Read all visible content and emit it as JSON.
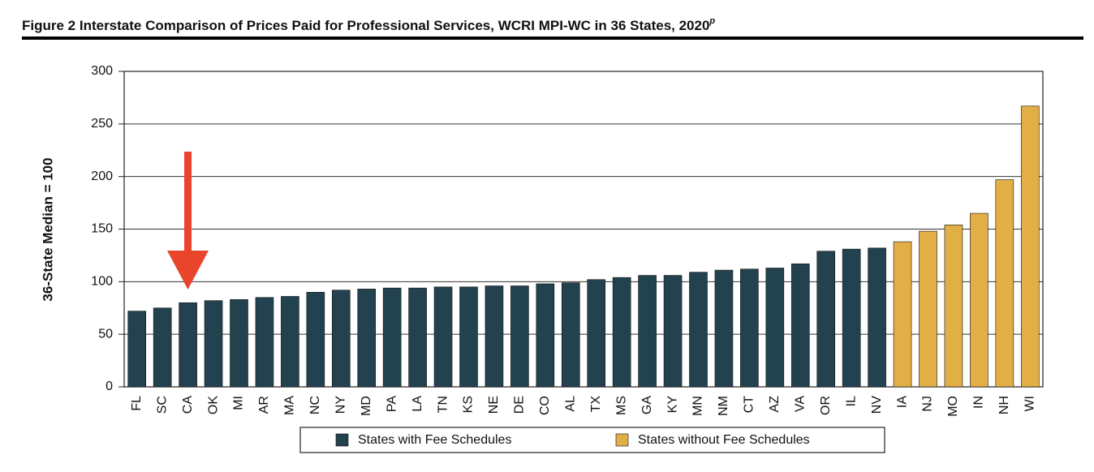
{
  "chart_data": {
    "type": "bar",
    "title": "Figure 2  Interstate Comparison of Prices Paid for Professional Services, WCRI MPI-WC in 36 States, 2020",
    "title_superscript": "p",
    "ylabel": "36-State Median = 100",
    "categories": [
      "FL",
      "SC",
      "CA",
      "OK",
      "MI",
      "AR",
      "MA",
      "NC",
      "NY",
      "MD",
      "PA",
      "LA",
      "TN",
      "KS",
      "NE",
      "DE",
      "CO",
      "AL",
      "TX",
      "MS",
      "GA",
      "KY",
      "MN",
      "NM",
      "CT",
      "AZ",
      "VA",
      "OR",
      "IL",
      "NV",
      "IA",
      "NJ",
      "MO",
      "IN",
      "NH",
      "WI"
    ],
    "series": [
      {
        "name": "States with Fee Schedules",
        "color": "#23424f",
        "values": [
          72,
          75,
          80,
          82,
          83,
          85,
          86,
          90,
          92,
          93,
          94,
          94,
          95,
          95,
          96,
          96,
          98,
          99,
          102,
          104,
          106,
          106,
          109,
          111,
          112,
          113,
          117,
          129,
          131,
          132,
          null,
          null,
          null,
          null,
          null,
          null
        ]
      },
      {
        "name": "States without Fee Schedules",
        "color": "#e2ae46",
        "values": [
          null,
          null,
          null,
          null,
          null,
          null,
          null,
          null,
          null,
          null,
          null,
          null,
          null,
          null,
          null,
          null,
          null,
          null,
          null,
          null,
          null,
          null,
          null,
          null,
          null,
          null,
          null,
          null,
          null,
          null,
          138,
          148,
          154,
          165,
          197,
          267
        ]
      }
    ],
    "ylim": [
      0,
      300
    ],
    "yticks": [
      0,
      50,
      100,
      150,
      200,
      250,
      300
    ],
    "grid": true,
    "legend": "bottom"
  }
}
